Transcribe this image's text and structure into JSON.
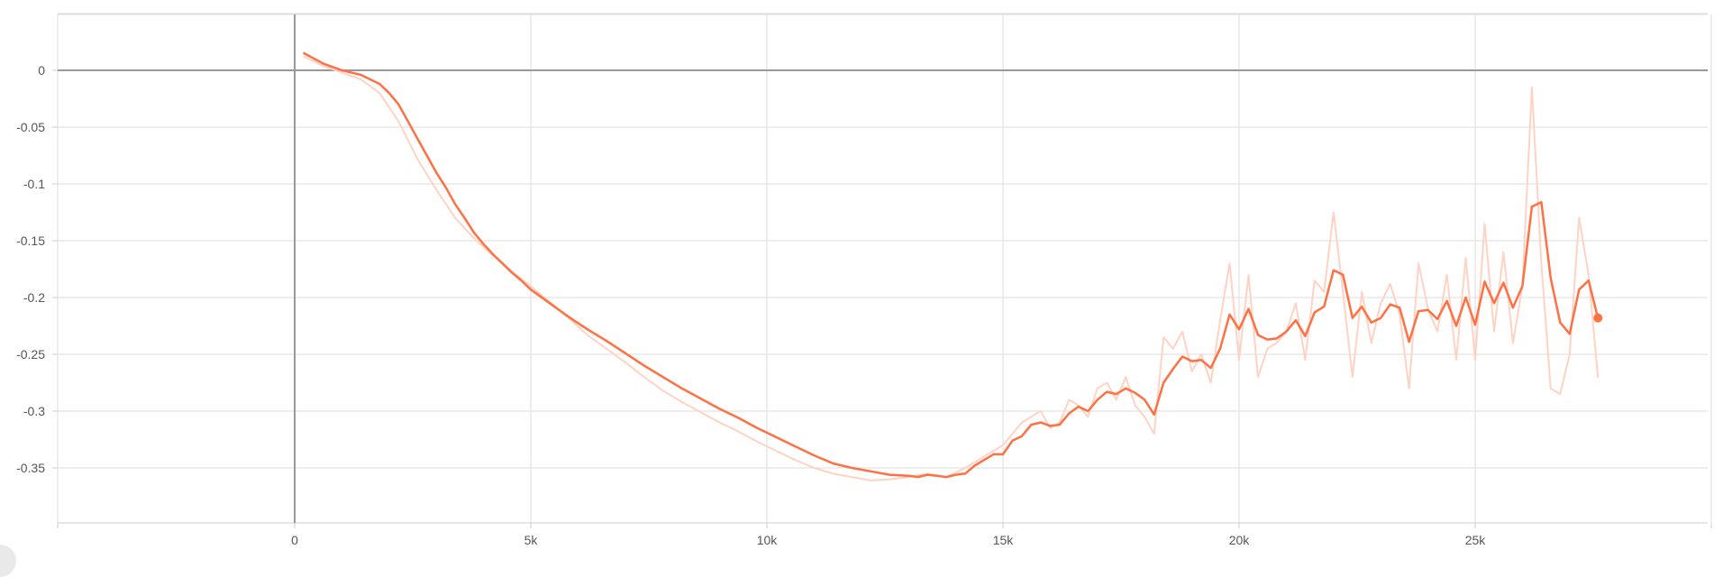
{
  "chart_data": {
    "type": "line",
    "title": "",
    "xlabel": "",
    "ylabel": "",
    "xlim": [
      -5000,
      30000
    ],
    "ylim": [
      -0.4,
      0.05
    ],
    "grid": true,
    "legend": "none",
    "x_ticks": [
      {
        "value": 0,
        "label": "0"
      },
      {
        "value": 5000,
        "label": "5k"
      },
      {
        "value": 10000,
        "label": "10k"
      },
      {
        "value": 15000,
        "label": "15k"
      },
      {
        "value": 20000,
        "label": "20k"
      },
      {
        "value": 25000,
        "label": "25k"
      }
    ],
    "y_ticks": [
      {
        "value": 0,
        "label": "0"
      },
      {
        "value": -0.05,
        "label": "-0.05"
      },
      {
        "value": -0.1,
        "label": "-0.1"
      },
      {
        "value": -0.15,
        "label": "-0.15"
      },
      {
        "value": -0.2,
        "label": "-0.2"
      },
      {
        "value": -0.25,
        "label": "-0.25"
      },
      {
        "value": -0.3,
        "label": "-0.3"
      },
      {
        "value": -0.35,
        "label": "-0.35"
      }
    ],
    "colors": {
      "smoothed": "#ff7043",
      "raw": "#ffd3c4",
      "grid": "#dddddd",
      "zero_axis": "#999999"
    },
    "series": [
      {
        "role": "raw",
        "x": [
          200,
          600,
          1000,
          1400,
          1800,
          2200,
          2600,
          3000,
          3400,
          3800,
          4200,
          4600,
          5000,
          5400,
          5800,
          6200,
          6600,
          7000,
          7400,
          7800,
          8200,
          8600,
          9000,
          9400,
          9800,
          10200,
          10600,
          11000,
          11400,
          11800,
          12200,
          12600,
          13000,
          13400,
          13800,
          14200,
          14600,
          15000,
          15200,
          15400,
          15600,
          15800,
          16000,
          16200,
          16400,
          16600,
          16800,
          17000,
          17200,
          17400,
          17600,
          17800,
          18000,
          18200,
          18400,
          18600,
          18800,
          19000,
          19200,
          19400,
          19600,
          19800,
          20000,
          20200,
          20400,
          20600,
          20800,
          21000,
          21200,
          21400,
          21600,
          21800,
          22000,
          22200,
          22400,
          22600,
          22800,
          23000,
          23200,
          23400,
          23600,
          23800,
          24000,
          24200,
          24400,
          24600,
          24800,
          25000,
          25200,
          25400,
          25600,
          25800,
          26000,
          26200,
          26400,
          26600,
          26800,
          27000,
          27200,
          27400,
          27600
        ],
        "y": [
          0.012,
          0.004,
          -0.002,
          -0.008,
          -0.02,
          -0.045,
          -0.078,
          -0.105,
          -0.13,
          -0.148,
          -0.163,
          -0.177,
          -0.19,
          -0.204,
          -0.218,
          -0.233,
          -0.245,
          -0.257,
          -0.27,
          -0.282,
          -0.292,
          -0.301,
          -0.31,
          -0.318,
          -0.327,
          -0.335,
          -0.343,
          -0.35,
          -0.355,
          -0.358,
          -0.361,
          -0.36,
          -0.358,
          -0.355,
          -0.358,
          -0.35,
          -0.34,
          -0.33,
          -0.32,
          -0.31,
          -0.305,
          -0.3,
          -0.315,
          -0.31,
          -0.29,
          -0.295,
          -0.305,
          -0.28,
          -0.275,
          -0.29,
          -0.27,
          -0.295,
          -0.305,
          -0.32,
          -0.235,
          -0.245,
          -0.23,
          -0.265,
          -0.25,
          -0.275,
          -0.22,
          -0.17,
          -0.255,
          -0.18,
          -0.27,
          -0.245,
          -0.24,
          -0.23,
          -0.205,
          -0.255,
          -0.185,
          -0.195,
          -0.125,
          -0.195,
          -0.27,
          -0.195,
          -0.24,
          -0.205,
          -0.188,
          -0.215,
          -0.28,
          -0.17,
          -0.21,
          -0.23,
          -0.18,
          -0.255,
          -0.165,
          -0.255,
          -0.135,
          -0.23,
          -0.16,
          -0.24,
          -0.19,
          -0.015,
          -0.17,
          -0.28,
          -0.285,
          -0.25,
          -0.13,
          -0.18,
          -0.27
        ]
      },
      {
        "role": "smoothed",
        "x": [
          200,
          600,
          1000,
          1400,
          1800,
          2000,
          2200,
          2400,
          2600,
          2800,
          3000,
          3200,
          3400,
          3600,
          3800,
          4000,
          4200,
          4400,
          4600,
          4800,
          5000,
          5400,
          5800,
          6200,
          6600,
          7000,
          7400,
          7800,
          8200,
          8600,
          9000,
          9400,
          9800,
          10200,
          10600,
          11000,
          11400,
          11800,
          12200,
          12600,
          13000,
          13200,
          13400,
          13600,
          13800,
          14000,
          14200,
          14400,
          14600,
          14800,
          15000,
          15200,
          15400,
          15600,
          15800,
          16000,
          16200,
          16400,
          16600,
          16800,
          17000,
          17200,
          17400,
          17600,
          17800,
          18000,
          18200,
          18400,
          18600,
          18800,
          19000,
          19200,
          19400,
          19600,
          19800,
          20000,
          20200,
          20400,
          20600,
          20800,
          21000,
          21200,
          21400,
          21600,
          21800,
          22000,
          22200,
          22400,
          22600,
          22800,
          23000,
          23200,
          23400,
          23600,
          23800,
          24000,
          24200,
          24400,
          24600,
          24800,
          25000,
          25200,
          25400,
          25600,
          25800,
          26000,
          26200,
          26400,
          26600,
          26800,
          27000,
          27200,
          27400,
          27600
        ],
        "y": [
          0.015,
          0.006,
          0.0,
          -0.004,
          -0.012,
          -0.02,
          -0.03,
          -0.045,
          -0.06,
          -0.075,
          -0.09,
          -0.103,
          -0.118,
          -0.13,
          -0.143,
          -0.153,
          -0.162,
          -0.17,
          -0.178,
          -0.185,
          -0.193,
          -0.205,
          -0.217,
          -0.228,
          -0.238,
          -0.249,
          -0.26,
          -0.27,
          -0.28,
          -0.289,
          -0.298,
          -0.306,
          -0.315,
          -0.323,
          -0.331,
          -0.339,
          -0.346,
          -0.35,
          -0.353,
          -0.356,
          -0.357,
          -0.358,
          -0.356,
          -0.357,
          -0.358,
          -0.356,
          -0.355,
          -0.348,
          -0.343,
          -0.338,
          -0.338,
          -0.326,
          -0.322,
          -0.312,
          -0.31,
          -0.313,
          -0.312,
          -0.302,
          -0.296,
          -0.3,
          -0.29,
          -0.283,
          -0.285,
          -0.28,
          -0.284,
          -0.29,
          -0.303,
          -0.275,
          -0.263,
          -0.252,
          -0.256,
          -0.255,
          -0.262,
          -0.245,
          -0.215,
          -0.228,
          -0.21,
          -0.233,
          -0.237,
          -0.236,
          -0.23,
          -0.22,
          -0.234,
          -0.213,
          -0.208,
          -0.176,
          -0.18,
          -0.218,
          -0.208,
          -0.222,
          -0.218,
          -0.206,
          -0.209,
          -0.239,
          -0.212,
          -0.211,
          -0.219,
          -0.203,
          -0.225,
          -0.2,
          -0.224,
          -0.186,
          -0.205,
          -0.187,
          -0.209,
          -0.19,
          -0.12,
          -0.116,
          -0.183,
          -0.222,
          -0.232,
          -0.193,
          -0.185,
          -0.218
        ]
      }
    ]
  }
}
